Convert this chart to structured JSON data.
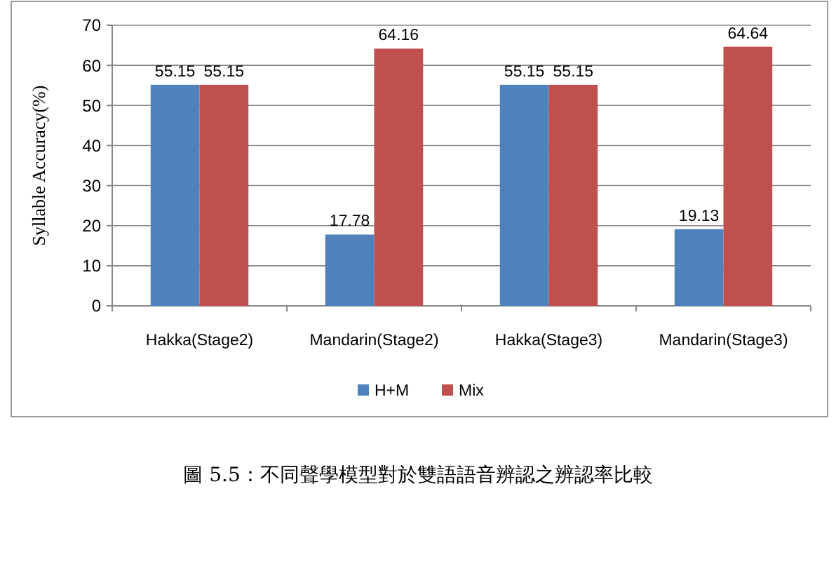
{
  "chart_data": {
    "type": "bar",
    "categories": [
      "Hakka(Stage2)",
      "Mandarin(Stage2)",
      "Hakka(Stage3)",
      "Mandarin(Stage3)"
    ],
    "series": [
      {
        "name": "H+M",
        "color": "#4f81bd",
        "values": [
          55.15,
          17.78,
          55.15,
          19.13
        ]
      },
      {
        "name": "Mix",
        "color": "#c0504d",
        "values": [
          55.15,
          64.16,
          55.15,
          64.64
        ]
      }
    ],
    "ylabel": "Syllable Accuracy(%)",
    "ylim": [
      0,
      70
    ],
    "yticks": [
      0,
      10,
      20,
      30,
      40,
      50,
      60,
      70
    ],
    "grid": "y",
    "legend": "bottom",
    "data_labels": true,
    "annotations": [
      "圖 5.5：不同聲學模型對於雙語語音辨認之辨認率比較"
    ]
  }
}
